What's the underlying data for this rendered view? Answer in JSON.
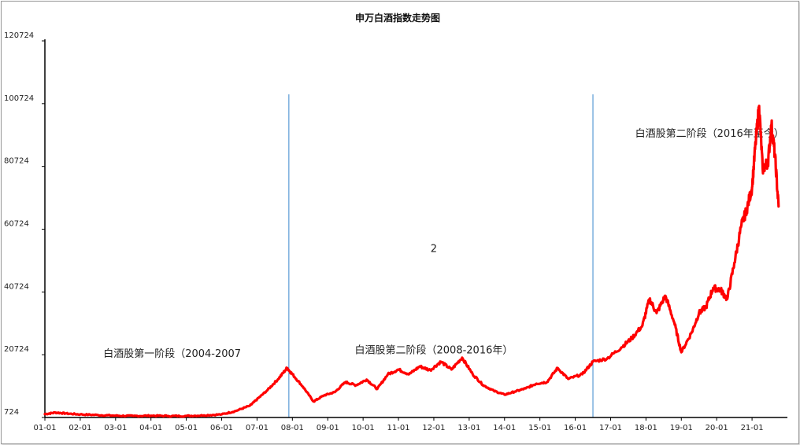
{
  "chart_data": {
    "type": "line",
    "title": "申万白酒指数走势图",
    "xlabel": "",
    "ylabel": "",
    "ylim": [
      724,
      120724
    ],
    "xlim": [
      2001.0,
      2022.0
    ],
    "grid": false,
    "legend": "none",
    "y_ticks": [
      "724",
      "20724",
      "40724",
      "60724",
      "80724",
      "100724",
      "120724"
    ],
    "x_ticks": [
      "01-01",
      "02-01",
      "03-01",
      "04-01",
      "05-01",
      "06-01",
      "07-01",
      "08-01",
      "09-01",
      "10-01",
      "11-01",
      "12-01",
      "13-01",
      "14-01",
      "15-01",
      "16-01",
      "17-01",
      "18-01",
      "19-01",
      "20-01",
      "21-01"
    ],
    "colors": {
      "line": "#ff0000",
      "divider": "#5b9bd5"
    },
    "dividers": [
      2007.9,
      2016.5
    ],
    "annotations": [
      {
        "text": "白酒股第一阶段（2004-2007",
        "x": 2004.6,
        "y": 20000
      },
      {
        "text": "2",
        "x": 2012.0,
        "y": 53500
      },
      {
        "text": "白酒股第二阶段（2008-2016年）",
        "x": 2012.0,
        "y": 21200
      },
      {
        "text": "白酒股第二阶段（2016年至今）",
        "x": 2019.8,
        "y": 90100
      }
    ],
    "series": [
      {
        "points": [
          [
            2001.0,
            1800
          ],
          [
            2001.3,
            2300
          ],
          [
            2001.6,
            2000
          ],
          [
            2002.0,
            1700
          ],
          [
            2002.5,
            1500
          ],
          [
            2003.0,
            1300
          ],
          [
            2003.5,
            1200
          ],
          [
            2004.0,
            1300
          ],
          [
            2004.5,
            1200
          ],
          [
            2005.0,
            1200
          ],
          [
            2005.5,
            1400
          ],
          [
            2006.0,
            1700
          ],
          [
            2006.4,
            2800
          ],
          [
            2006.8,
            4500
          ],
          [
            2007.0,
            6500
          ],
          [
            2007.3,
            9500
          ],
          [
            2007.6,
            13000
          ],
          [
            2007.85,
            16500
          ],
          [
            2008.0,
            14500
          ],
          [
            2008.3,
            10500
          ],
          [
            2008.6,
            5800
          ],
          [
            2008.9,
            7800
          ],
          [
            2009.2,
            8800
          ],
          [
            2009.5,
            12000
          ],
          [
            2009.8,
            11000
          ],
          [
            2010.1,
            12800
          ],
          [
            2010.4,
            9800
          ],
          [
            2010.7,
            14500
          ],
          [
            2011.0,
            16000
          ],
          [
            2011.3,
            14500
          ],
          [
            2011.6,
            17000
          ],
          [
            2011.9,
            15800
          ],
          [
            2012.2,
            18500
          ],
          [
            2012.5,
            16000
          ],
          [
            2012.8,
            19800
          ],
          [
            2013.1,
            14500
          ],
          [
            2013.4,
            11000
          ],
          [
            2013.7,
            9200
          ],
          [
            2014.0,
            8000
          ],
          [
            2014.3,
            9000
          ],
          [
            2014.6,
            10000
          ],
          [
            2014.9,
            11500
          ],
          [
            2015.2,
            12000
          ],
          [
            2015.5,
            16500
          ],
          [
            2015.8,
            13000
          ],
          [
            2016.2,
            14500
          ],
          [
            2016.5,
            18500
          ],
          [
            2016.9,
            19500
          ],
          [
            2017.3,
            23000
          ],
          [
            2017.6,
            26000
          ],
          [
            2017.9,
            30000
          ],
          [
            2018.1,
            38500
          ],
          [
            2018.3,
            34000
          ],
          [
            2018.55,
            39500
          ],
          [
            2018.8,
            31000
          ],
          [
            2019.0,
            21500
          ],
          [
            2019.3,
            28000
          ],
          [
            2019.5,
            34000
          ],
          [
            2019.7,
            36000
          ],
          [
            2019.9,
            42000
          ],
          [
            2020.1,
            41500
          ],
          [
            2020.3,
            38500
          ],
          [
            2020.5,
            50000
          ],
          [
            2020.7,
            62000
          ],
          [
            2020.85,
            67000
          ],
          [
            2021.0,
            74000
          ],
          [
            2021.1,
            88000
          ],
          [
            2021.2,
            100000
          ],
          [
            2021.3,
            80000
          ],
          [
            2021.45,
            82000
          ],
          [
            2021.55,
            94000
          ],
          [
            2021.65,
            84000
          ],
          [
            2021.75,
            68000
          ]
        ]
      }
    ]
  }
}
